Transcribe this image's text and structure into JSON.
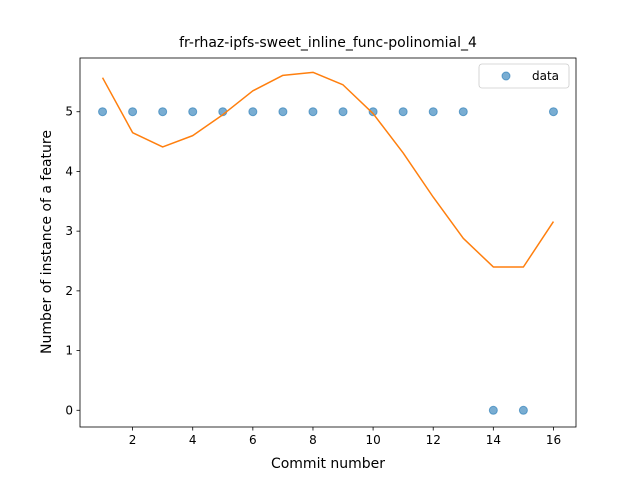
{
  "chart_data": {
    "type": "scatter",
    "title": "fr-rhaz-ipfs-sweet_inline_func-polinomial_4",
    "xlabel": "Commit number",
    "ylabel": "Number of instance of a feature",
    "xlim": [
      0.25,
      16.75
    ],
    "ylim": [
      -0.28,
      5.9
    ],
    "xticks": [
      2,
      4,
      6,
      8,
      10,
      12,
      14,
      16
    ],
    "yticks": [
      0,
      1,
      2,
      3,
      4,
      5
    ],
    "legend": {
      "position": "top-right"
    },
    "series": [
      {
        "name": "data",
        "kind": "scatter",
        "color": "#1f77b4",
        "x": [
          1,
          2,
          3,
          4,
          5,
          6,
          7,
          8,
          9,
          10,
          11,
          12,
          13,
          14,
          15,
          16
        ],
        "y": [
          5,
          5,
          5,
          5,
          5,
          5,
          5,
          5,
          5,
          5,
          5,
          5,
          5,
          0,
          0,
          5
        ]
      },
      {
        "kind": "line",
        "color": "#ff7f0e",
        "x": [
          1,
          2,
          3,
          4,
          5,
          6,
          7,
          8,
          9,
          10,
          11,
          12,
          13,
          14,
          15,
          16
        ],
        "y": [
          5.57,
          4.65,
          4.41,
          4.6,
          4.95,
          5.35,
          5.61,
          5.66,
          5.45,
          4.97,
          4.31,
          3.57,
          2.88,
          2.4,
          2.4,
          3.16
        ]
      }
    ]
  }
}
